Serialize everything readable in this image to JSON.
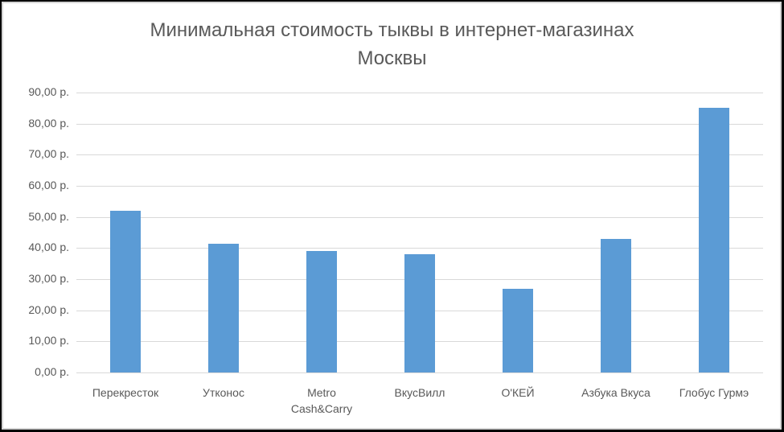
{
  "chart_data": {
    "type": "bar",
    "title": "Минимальная стоимость тыквы в интернет-магазинах Москвы",
    "title_lines": [
      "Минимальная стоимость тыквы в интернет-магазинах",
      "Москвы"
    ],
    "categories": [
      "Перекресток",
      "Утконос",
      "Metro Cash&Carry",
      "ВкусВилл",
      "О'КЕЙ",
      "Азбука Вкуса",
      "Глобус Гурмэ"
    ],
    "category_lines": [
      [
        "Перекресток"
      ],
      [
        "Утконос"
      ],
      [
        "Metro",
        "Cash&Carry"
      ],
      [
        "ВкусВилл"
      ],
      [
        "О'КЕЙ"
      ],
      [
        "Азбука Вкуса"
      ],
      [
        "Глобус Гурмэ"
      ]
    ],
    "values": [
      52,
      41.5,
      39,
      38,
      27,
      43,
      85
    ],
    "xlabel": "",
    "ylabel": "",
    "ylim": [
      0,
      90
    ],
    "yticks": [
      0,
      10,
      20,
      30,
      40,
      50,
      60,
      70,
      80,
      90
    ],
    "ytick_labels": [
      "0,00 р.",
      "10,00 р.",
      "20,00 р.",
      "30,00 р.",
      "40,00 р.",
      "50,00 р.",
      "60,00 р.",
      "70,00 р.",
      "80,00 р.",
      "90,00 р."
    ],
    "grid": true,
    "legend": null,
    "colors": {
      "bar": "#5b9bd5",
      "grid": "#d9d9d9",
      "text": "#595959"
    }
  }
}
